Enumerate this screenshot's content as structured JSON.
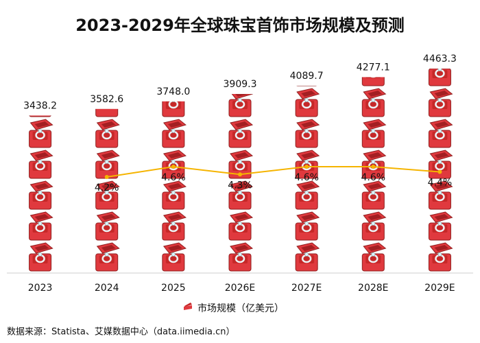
{
  "chart_data": {
    "type": "pictogram-bar",
    "title": "2023-2029年全球珠宝首饰市场规模及预测",
    "categories": [
      "2023",
      "2024",
      "2025",
      "2026E",
      "2027E",
      "2028E",
      "2029E"
    ],
    "series": [
      {
        "name": "市场规模（亿美元）",
        "color": "#e0393e",
        "values": [
          3438.2,
          3582.6,
          3748.0,
          3909.3,
          4089.7,
          4277.1,
          4463.3
        ],
        "value_labels": [
          "3438.2",
          "3582.6",
          "3748.0",
          "3909.3",
          "4089.7",
          "4277.1",
          "4463.3"
        ]
      },
      {
        "type": "line",
        "color": "#f5b400",
        "values": [
          null,
          4.2,
          4.6,
          4.3,
          4.6,
          4.6,
          4.4
        ],
        "value_labels": [
          null,
          "4.2%",
          "4.6%",
          "4.3%",
          "4.6%",
          "4.6%",
          "4.4%"
        ]
      }
    ],
    "source": "数据来源：Statista、艾媒数据中心（data.iimedia.cn）"
  }
}
